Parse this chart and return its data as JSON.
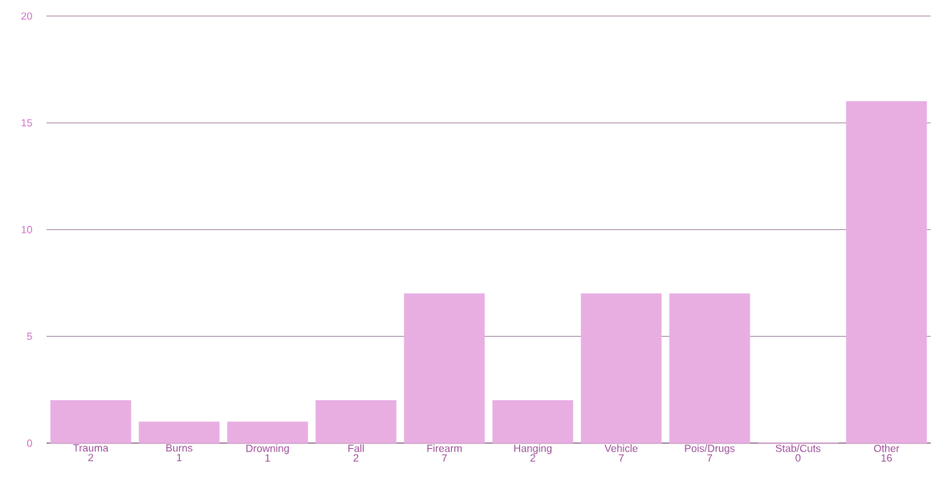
{
  "chart_data": {
    "type": "bar",
    "categories": [
      "Trauma",
      "Burns",
      "Drowning",
      "Fall",
      "Firearm",
      "Hanging",
      "Vehicle",
      "Pois/Drugs",
      "Stab/Cuts",
      "Other"
    ],
    "values": [
      2,
      1,
      1,
      2,
      7,
      2,
      7,
      7,
      0,
      16
    ],
    "color": "#e8aee2",
    "ylim": [
      0,
      20
    ],
    "yticks": [
      0,
      5,
      10,
      15,
      20
    ],
    "grid": "y",
    "data_labels": true
  }
}
